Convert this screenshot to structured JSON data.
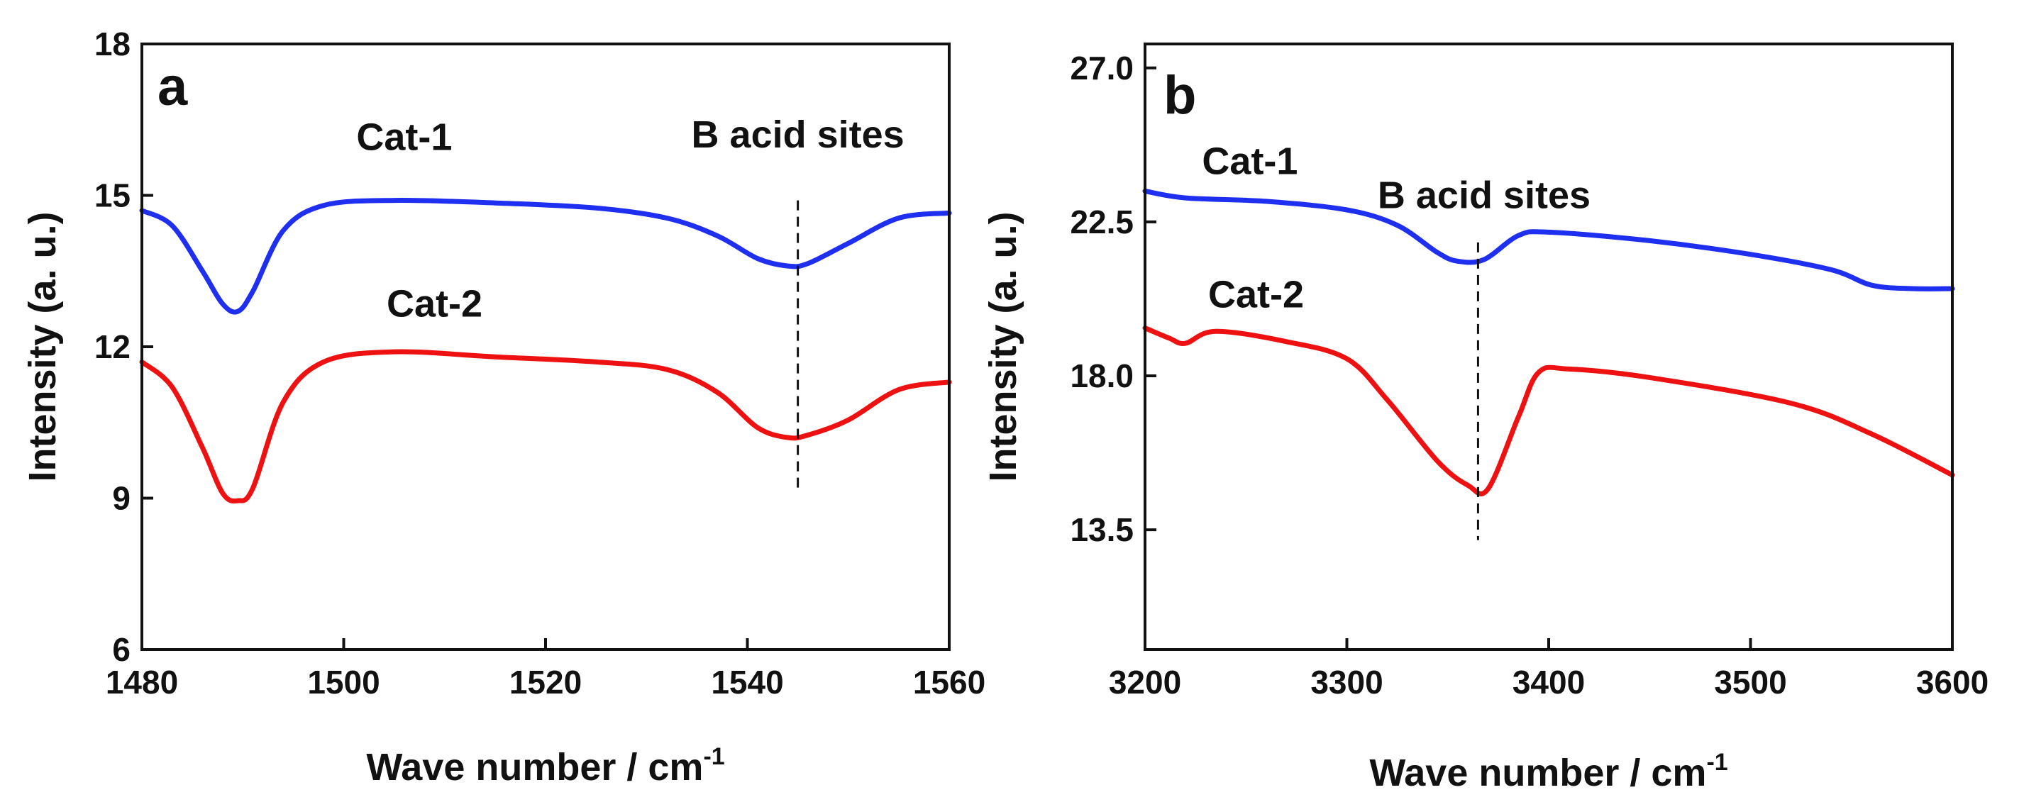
{
  "chart_data": [
    {
      "type": "line",
      "panel_label": "a",
      "xlabel": "Wave number / cm",
      "xlabel_sup": "-1",
      "ylabel": "Intensity (a. u.)",
      "xlim": [
        1480,
        1560
      ],
      "ylim": [
        6,
        18
      ],
      "xticks": [
        "1480",
        "1500",
        "1520",
        "1540",
        "1560"
      ],
      "yticks": [
        "6",
        "9",
        "12",
        "15",
        "18"
      ],
      "xtick_values": [
        1480,
        1500,
        1520,
        1540,
        1560
      ],
      "ytick_values": [
        6,
        9,
        12,
        15,
        18
      ],
      "series": [
        {
          "name": "Cat-1",
          "color": "#1f2ff0",
          "x": [
            1480,
            1483,
            1486,
            1488,
            1489.5,
            1491,
            1494,
            1498,
            1505,
            1515,
            1525,
            1532,
            1537,
            1541,
            1544,
            1546,
            1550,
            1555,
            1560
          ],
          "y": [
            14.7,
            14.4,
            13.5,
            12.85,
            12.7,
            13.1,
            14.3,
            14.8,
            14.9,
            14.85,
            14.75,
            14.55,
            14.2,
            13.75,
            13.6,
            13.65,
            14.05,
            14.55,
            14.65
          ]
        },
        {
          "name": "Cat-2",
          "color": "#ee1111",
          "x": [
            1480,
            1483,
            1486,
            1488,
            1489.5,
            1491,
            1494,
            1498,
            1505,
            1515,
            1525,
            1532,
            1537,
            1541,
            1544,
            1546,
            1550,
            1555,
            1560
          ],
          "y": [
            11.7,
            11.2,
            10.0,
            9.1,
            8.95,
            9.2,
            10.9,
            11.7,
            11.9,
            11.8,
            11.7,
            11.55,
            11.1,
            10.4,
            10.2,
            10.25,
            10.55,
            11.15,
            11.3
          ]
        }
      ],
      "annotations": [
        {
          "text": "Cat-1",
          "x": 1506,
          "y": 15.9
        },
        {
          "text": "Cat-2",
          "x": 1509,
          "y": 12.6
        },
        {
          "text": "B acid sites",
          "x": 1545,
          "y": 15.95
        }
      ],
      "marker_line": {
        "x": 1545,
        "y_from": 9.2,
        "y_to": 14.9
      }
    },
    {
      "type": "line",
      "panel_label": "b",
      "xlabel": "Wave number / cm",
      "xlabel_sup": "-1",
      "ylabel": "Intensity (a. u.)",
      "xlim": [
        3200,
        3600
      ],
      "ylim": [
        10,
        27.7
      ],
      "xticks": [
        "3200",
        "3300",
        "3400",
        "3500",
        "3600"
      ],
      "yticks": [
        "13.5",
        "18.0",
        "22.5",
        "27.0"
      ],
      "xtick_values": [
        3200,
        3300,
        3400,
        3500,
        3600
      ],
      "ytick_values": [
        13.5,
        18.0,
        22.5,
        27.0
      ],
      "series": [
        {
          "name": "Cat-1",
          "color": "#1f2ff0",
          "x": [
            3200,
            3220,
            3260,
            3300,
            3325,
            3345,
            3355,
            3368,
            3385,
            3400,
            3450,
            3500,
            3540,
            3560,
            3580,
            3600
          ],
          "y": [
            23.4,
            23.2,
            23.1,
            22.85,
            22.4,
            21.6,
            21.35,
            21.4,
            22.1,
            22.2,
            21.95,
            21.55,
            21.1,
            20.65,
            20.55,
            20.55
          ]
        },
        {
          "name": "Cat-2",
          "color": "#ee1111",
          "x": [
            3200,
            3212,
            3220,
            3235,
            3270,
            3300,
            3320,
            3345,
            3360,
            3370,
            3385,
            3395,
            3410,
            3450,
            3520,
            3560,
            3600
          ],
          "y": [
            19.4,
            19.1,
            18.95,
            19.3,
            19.0,
            18.5,
            17.3,
            15.5,
            14.8,
            14.7,
            16.8,
            18.1,
            18.2,
            17.95,
            17.2,
            16.3,
            15.1
          ]
        }
      ],
      "annotations": [
        {
          "text": "Cat-1",
          "x": 3252,
          "y": 23.9
        },
        {
          "text": "Cat-2",
          "x": 3255,
          "y": 20.0
        },
        {
          "text": "B acid sites",
          "x": 3368,
          "y": 22.9
        }
      ],
      "marker_line": {
        "x": 3365,
        "y_from": 13.2,
        "y_to": 21.9
      }
    }
  ]
}
